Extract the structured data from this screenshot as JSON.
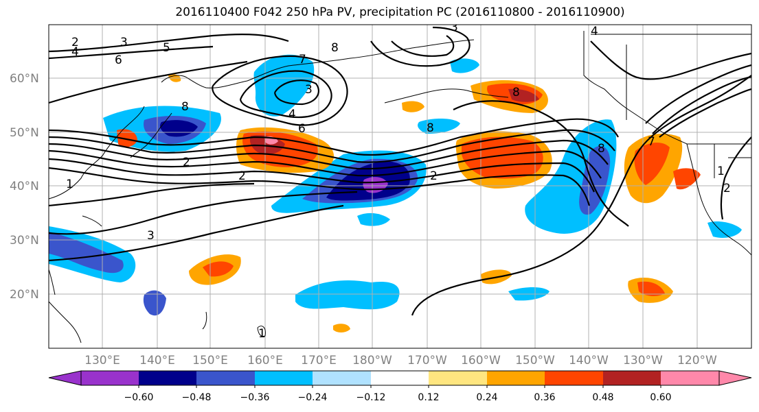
{
  "title": "2016110400 F042 250 hPa PV, precipitation PC (2016110800 - 2016110900)",
  "map": {
    "lon_range": [
      120,
      -110
    ],
    "lat_range": [
      10,
      70
    ],
    "lat_ticks": [
      "20°N",
      "30°N",
      "40°N",
      "50°N",
      "60°N"
    ],
    "lon_ticks": [
      "130°E",
      "140°E",
      "150°E",
      "160°E",
      "170°E",
      "180°W",
      "170°W",
      "160°W",
      "150°W",
      "140°W",
      "130°W",
      "120°W"
    ],
    "grid": true
  },
  "colorbar": {
    "tick_labels": [
      "−0.60",
      "−0.48",
      "−0.36",
      "−0.24",
      "−0.12",
      "0.12",
      "0.24",
      "0.36",
      "0.48",
      "0.60"
    ],
    "colors": [
      "#9932cc",
      "#00008b",
      "#3a55cc",
      "#00bfff",
      "#b0e2ff",
      "#ffffff",
      "#ffe680",
      "#ffa500",
      "#ff4500",
      "#b22222",
      "#ff88aa"
    ]
  },
  "contour_labels": [
    "2",
    "3",
    "4",
    "5",
    "6",
    "7",
    "8",
    "3",
    "4",
    "6",
    "8",
    "2",
    "2",
    "3",
    "8",
    "8",
    "2",
    "1",
    "4",
    "8",
    "1",
    "2",
    "1",
    "7",
    "3"
  ]
}
